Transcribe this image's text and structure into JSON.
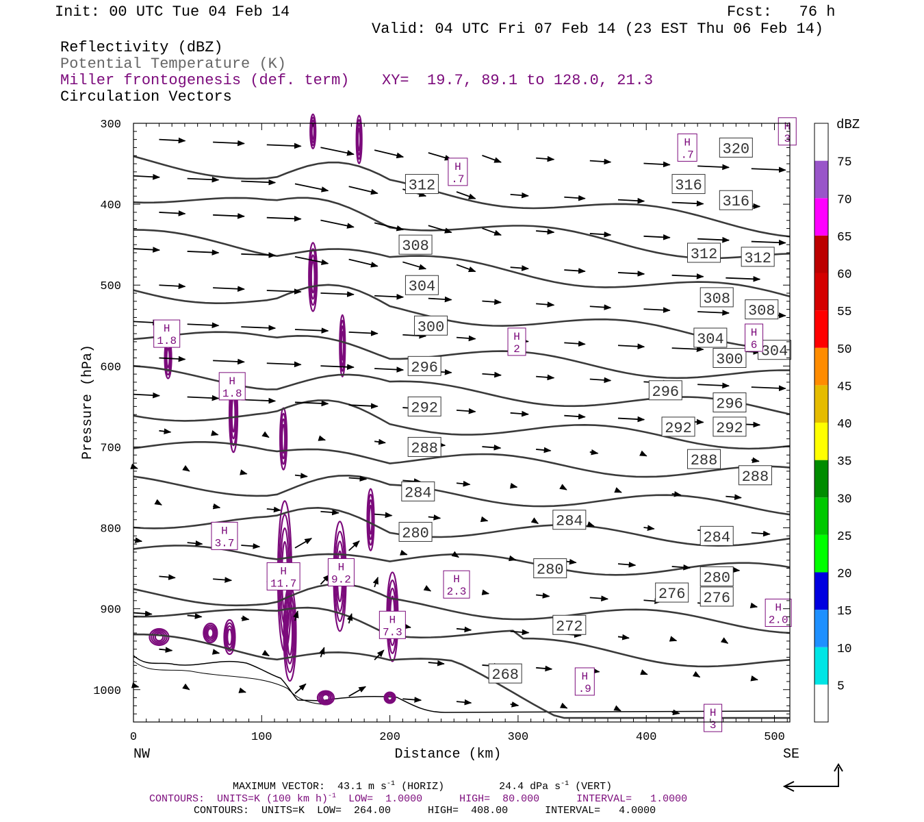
{
  "header": {
    "init": "Init: 00 UTC Tue 04 Feb 14",
    "fcst": "Fcst:   76 h",
    "valid": "Valid: 04 UTC Fri 07 Feb 14 (23 EST Thu 06 Feb 14)"
  },
  "legend": {
    "line1": "Reflectivity (dBZ)",
    "line2": "Potential Temperature (K)",
    "line3": "Miller frontogenesis (def. term)",
    "line4": "Circulation Vectors",
    "xy": "XY=  19.7, 89.1 to 128.0, 21.3"
  },
  "colors": {
    "theta": "#3a3a3a",
    "fronto": "#7b0a7b",
    "legend2": "#666666"
  },
  "chart_data": {
    "type": "cross-section",
    "xlabel": "Distance (km)",
    "ylabel": "Pressure (hPa)",
    "xlim": [
      0,
      512
    ],
    "ylim": [
      1040,
      300
    ],
    "x_ticks": [
      0,
      100,
      200,
      300,
      400,
      500
    ],
    "y_ticks": [
      300,
      400,
      500,
      600,
      700,
      800,
      900,
      1000
    ],
    "x_end_labels": {
      "left": "NW",
      "right": "SE"
    },
    "theta_contours": [
      {
        "value": 268,
        "labels": [
          {
            "x": 290,
            "p": 980
          }
        ]
      },
      {
        "value": 272,
        "labels": [
          {
            "x": 340,
            "p": 920
          }
        ]
      },
      {
        "value": 276,
        "labels": [
          {
            "x": 420,
            "p": 880
          },
          {
            "x": 455,
            "p": 885
          }
        ]
      },
      {
        "value": 280,
        "labels": [
          {
            "x": 220,
            "p": 805
          },
          {
            "x": 325,
            "p": 850
          },
          {
            "x": 455,
            "p": 860
          }
        ]
      },
      {
        "value": 284,
        "labels": [
          {
            "x": 222,
            "p": 755
          },
          {
            "x": 340,
            "p": 790
          },
          {
            "x": 455,
            "p": 810
          }
        ]
      },
      {
        "value": 288,
        "labels": [
          {
            "x": 227,
            "p": 700
          },
          {
            "x": 445,
            "p": 715
          },
          {
            "x": 485,
            "p": 735
          }
        ]
      },
      {
        "value": 292,
        "labels": [
          {
            "x": 227,
            "p": 650
          },
          {
            "x": 425,
            "p": 675
          },
          {
            "x": 465,
            "p": 675
          }
        ]
      },
      {
        "value": 296,
        "labels": [
          {
            "x": 227,
            "p": 600
          },
          {
            "x": 415,
            "p": 630
          },
          {
            "x": 465,
            "p": 645
          }
        ]
      },
      {
        "value": 300,
        "labels": [
          {
            "x": 232,
            "p": 550
          },
          {
            "x": 465,
            "p": 590
          }
        ]
      },
      {
        "value": 304,
        "labels": [
          {
            "x": 225,
            "p": 500
          },
          {
            "x": 450,
            "p": 565
          },
          {
            "x": 500,
            "p": 580
          }
        ]
      },
      {
        "value": 308,
        "labels": [
          {
            "x": 220,
            "p": 450
          },
          {
            "x": 455,
            "p": 515
          },
          {
            "x": 490,
            "p": 530
          }
        ]
      },
      {
        "value": 312,
        "labels": [
          {
            "x": 225,
            "p": 375
          },
          {
            "x": 445,
            "p": 460
          },
          {
            "x": 487,
            "p": 465
          }
        ]
      },
      {
        "value": 316,
        "labels": [
          {
            "x": 433,
            "p": 375
          },
          {
            "x": 470,
            "p": 395
          }
        ]
      },
      {
        "value": 320,
        "labels": [
          {
            "x": 470,
            "p": 330
          }
        ]
      }
    ],
    "fronto_maxima": [
      {
        "label": "H",
        "value": "1.8",
        "x": 26,
        "p": 560
      },
      {
        "label": "H",
        "value": "1.8",
        "x": 77,
        "p": 625
      },
      {
        "label": "H",
        "value": "3.7",
        "x": 71,
        "p": 810
      },
      {
        "label": "H",
        "value": "11.7",
        "x": 117,
        "p": 860
      },
      {
        "label": "H",
        "value": "9.2",
        "x": 162,
        "p": 855
      },
      {
        "label": "H",
        "value": "7.3",
        "x": 202,
        "p": 920
      },
      {
        "label": "H",
        "value": "2.3",
        "x": 252,
        "p": 870
      },
      {
        "label": "H",
        "value": "2",
        "x": 299,
        "p": 570
      },
      {
        "label": "H",
        "value": ".7",
        "x": 253,
        "p": 360
      },
      {
        "label": "H",
        "value": ".7",
        "x": 432,
        "p": 330
      },
      {
        "label": "H",
        "value": ".9",
        "x": 352,
        "p": 990
      },
      {
        "label": "H",
        "value": "3",
        "x": 452,
        "p": 1035
      },
      {
        "label": "H",
        "value": "2.0",
        "x": 503,
        "p": 905
      },
      {
        "label": "H",
        "value": "6",
        "x": 484,
        "p": 565
      },
      {
        "label": "H",
        "value": "3",
        "x": 510,
        "p": 310
      }
    ],
    "colorbar": {
      "label": "dBZ",
      "ticks": [
        5,
        10,
        15,
        20,
        25,
        30,
        35,
        40,
        45,
        50,
        55,
        60,
        65,
        70,
        75
      ],
      "colors": [
        "#ffffff",
        "#00e5e5",
        "#1e90ff",
        "#0000e0",
        "#00ff00",
        "#00c800",
        "#008c00",
        "#ffff00",
        "#e5bc00",
        "#ff8c00",
        "#ff0000",
        "#d40000",
        "#bc0000",
        "#ff00ff",
        "#9955c9",
        "#ffffff"
      ]
    }
  },
  "footer": {
    "max_vector": "MAXIMUM VECTOR:  43.1 m s",
    "max_vector_sup": "-1",
    "horiz": " (HORIZ)",
    "vert_val": "24.4 dPa s",
    "vert_sup": "-1",
    "vert": " (VERT)",
    "contours1_a": "CONTOURS:  UNITS=K (100 km h)",
    "contours1_sup": "-1",
    "contours1_b": "  LOW=  1.0000      HIGH=  80.000      INTERVAL=   1.0000",
    "contours2": "CONTOURS:  UNITS=K  LOW=  264.00      HIGH=  408.00      INTERVAL=   4.0000"
  }
}
